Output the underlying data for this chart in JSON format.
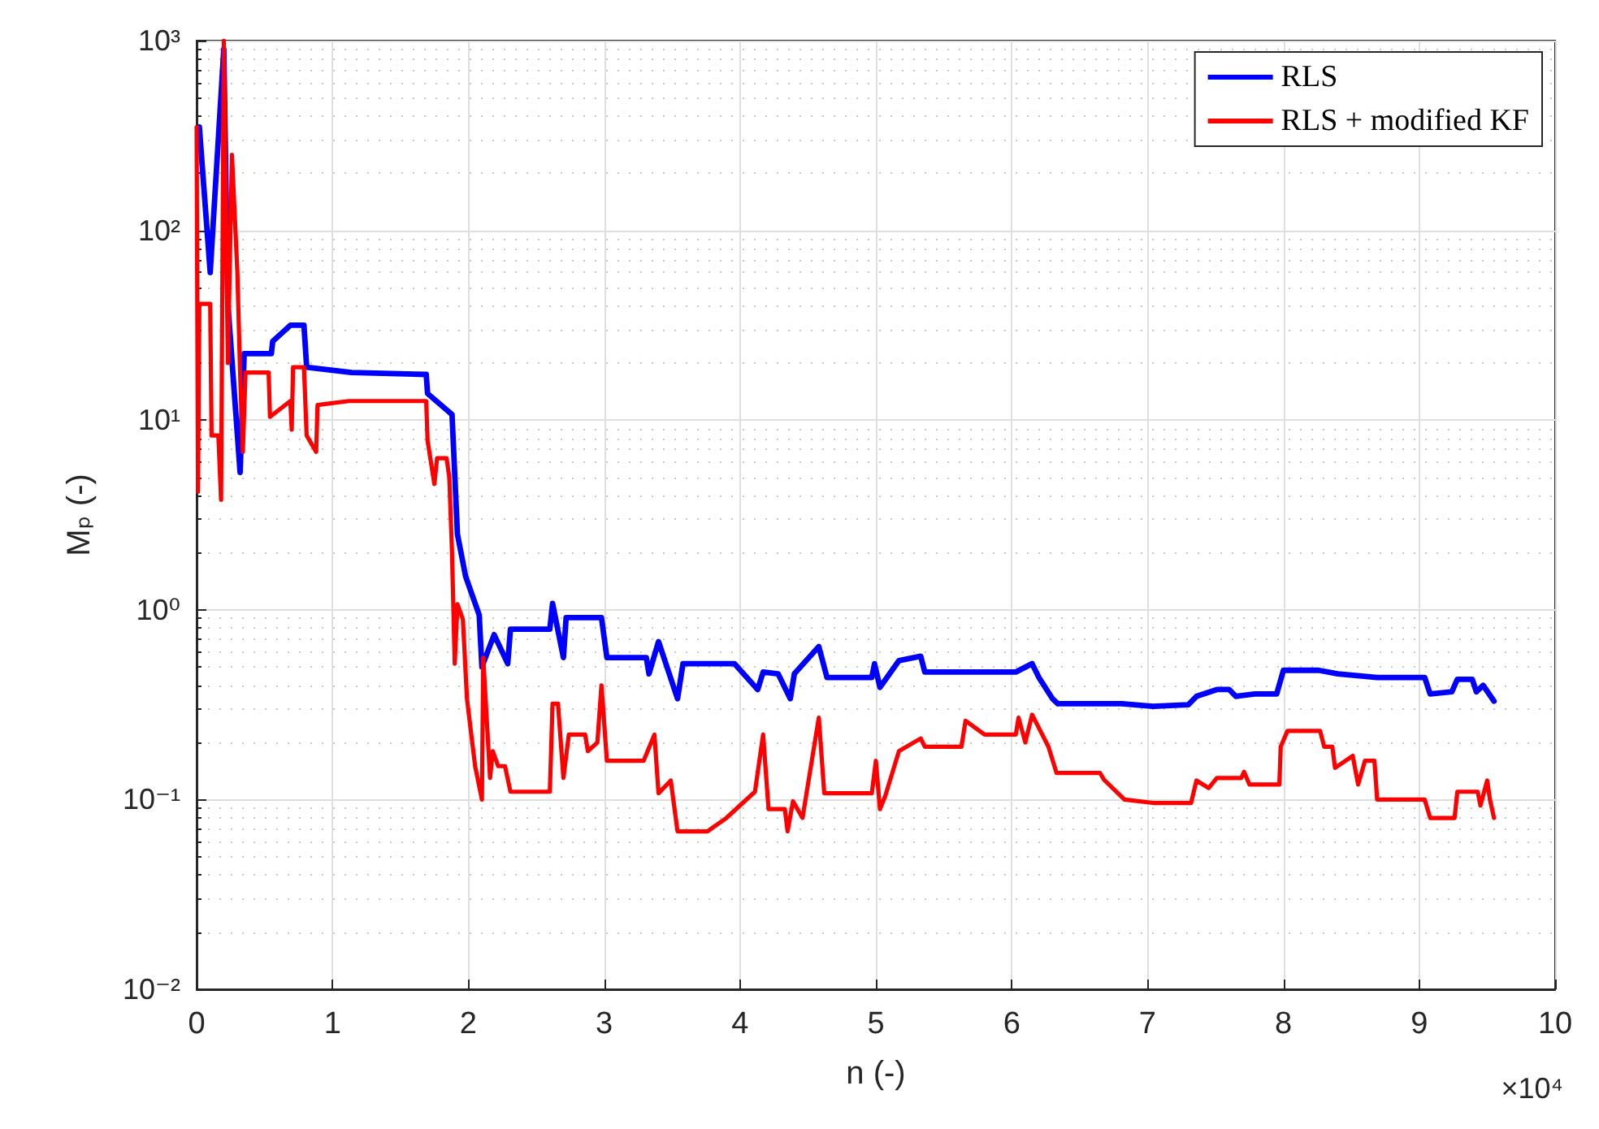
{
  "chart_data": {
    "type": "line",
    "xlabel": "n (-)",
    "ylabel": "Mₚ (-)",
    "annotations": [
      "×10⁴"
    ],
    "log": "y",
    "grid": true,
    "legend": "top right",
    "line_style": "solid",
    "marker": "none",
    "xlim": [
      0,
      10
    ],
    "xticks": [
      0,
      1,
      2,
      3,
      4,
      5,
      6,
      7,
      8,
      9,
      10
    ],
    "ylim": [
      0.01,
      1000
    ],
    "yticks": [
      {
        "value": 0.01,
        "label": "10⁻²"
      },
      {
        "value": 0.1,
        "label": "10⁻¹"
      },
      {
        "value": 1,
        "label": "10⁰"
      },
      {
        "value": 10,
        "label": "10¹"
      },
      {
        "value": 100,
        "label": "10²"
      },
      {
        "value": 1000,
        "label": "10³"
      }
    ],
    "series": [
      {
        "name": "RLS",
        "color": "#0000ff",
        "x": [
          0.02,
          0.1,
          0.2,
          0.23,
          0.32,
          0.35,
          0.55,
          0.56,
          0.69,
          0.79,
          0.81,
          1.14,
          1.69,
          1.7,
          1.88,
          1.92,
          1.98,
          2.08,
          2.1,
          2.19,
          2.29,
          2.31,
          2.6,
          2.62,
          2.7,
          2.72,
          2.98,
          3.02,
          3.31,
          3.33,
          3.4,
          3.54,
          3.58,
          3.96,
          4.13,
          4.17,
          4.28,
          4.37,
          4.4,
          4.58,
          4.64,
          4.97,
          4.99,
          5.03,
          5.17,
          5.33,
          5.36,
          6.03,
          6.15,
          6.2,
          6.3,
          6.34,
          6.81,
          7.04,
          7.3,
          7.36,
          7.51,
          7.6,
          7.65,
          7.79,
          7.95,
          8.0,
          8.26,
          8.4,
          8.69,
          9.04,
          9.08,
          9.24,
          9.28,
          9.39,
          9.42,
          9.47,
          9.55
        ],
        "values": [
          350,
          60,
          900,
          41,
          5.3,
          22.4,
          22.4,
          26,
          31.6,
          31.6,
          19,
          17.8,
          17.4,
          13.8,
          10.7,
          2.5,
          1.5,
          0.94,
          0.5,
          0.74,
          0.52,
          0.79,
          0.79,
          1.08,
          0.56,
          0.91,
          0.91,
          0.56,
          0.56,
          0.46,
          0.68,
          0.34,
          0.52,
          0.52,
          0.38,
          0.47,
          0.46,
          0.34,
          0.46,
          0.64,
          0.44,
          0.44,
          0.52,
          0.39,
          0.54,
          0.57,
          0.47,
          0.47,
          0.52,
          0.44,
          0.34,
          0.32,
          0.32,
          0.31,
          0.316,
          0.35,
          0.38,
          0.38,
          0.35,
          0.36,
          0.36,
          0.48,
          0.48,
          0.46,
          0.44,
          0.44,
          0.36,
          0.37,
          0.43,
          0.43,
          0.37,
          0.4,
          0.33
        ]
      },
      {
        "name": "RLS + modified KF",
        "color": "#ff0000",
        "x": [
          0.0,
          0.01,
          0.02,
          0.1,
          0.11,
          0.16,
          0.18,
          0.2,
          0.23,
          0.26,
          0.3,
          0.32,
          0.34,
          0.36,
          0.53,
          0.54,
          0.69,
          0.7,
          0.71,
          0.79,
          0.81,
          0.88,
          0.89,
          1.12,
          1.69,
          1.7,
          1.75,
          1.77,
          1.84,
          1.86,
          1.88,
          1.9,
          1.92,
          1.96,
          1.99,
          2.05,
          2.1,
          2.11,
          2.16,
          2.18,
          2.22,
          2.27,
          2.31,
          2.6,
          2.62,
          2.66,
          2.7,
          2.74,
          2.86,
          2.88,
          2.95,
          2.98,
          3.02,
          3.29,
          3.37,
          3.4,
          3.49,
          3.54,
          3.76,
          3.9,
          4.11,
          4.17,
          4.21,
          4.33,
          4.35,
          4.39,
          4.46,
          4.5,
          4.58,
          4.62,
          4.97,
          5.0,
          5.03,
          5.07,
          5.17,
          5.33,
          5.36,
          5.63,
          5.66,
          5.8,
          6.03,
          6.05,
          6.1,
          6.15,
          6.27,
          6.33,
          6.65,
          6.68,
          6.83,
          7.04,
          7.32,
          7.36,
          7.45,
          7.51,
          7.69,
          7.71,
          7.75,
          7.97,
          7.98,
          8.03,
          8.27,
          8.3,
          8.36,
          8.38,
          8.51,
          8.55,
          8.6,
          8.67,
          8.69,
          9.04,
          9.08,
          9.26,
          9.28,
          9.43,
          9.45,
          9.5,
          9.52,
          9.55
        ],
        "values": [
          350,
          4.2,
          41,
          41,
          8.3,
          8.3,
          3.8,
          1000,
          20,
          250,
          60,
          17.8,
          6.8,
          17.8,
          17.8,
          10.4,
          12.6,
          8.9,
          19,
          19,
          8.3,
          6.8,
          12,
          12.6,
          12.6,
          7.8,
          4.6,
          6.3,
          6.3,
          5.0,
          2.0,
          0.52,
          1.07,
          0.89,
          0.34,
          0.15,
          0.1,
          0.56,
          0.13,
          0.18,
          0.15,
          0.15,
          0.11,
          0.11,
          0.32,
          0.32,
          0.13,
          0.22,
          0.22,
          0.18,
          0.2,
          0.4,
          0.16,
          0.16,
          0.22,
          0.108,
          0.126,
          0.068,
          0.068,
          0.08,
          0.11,
          0.22,
          0.089,
          0.089,
          0.068,
          0.098,
          0.08,
          0.12,
          0.27,
          0.108,
          0.108,
          0.16,
          0.089,
          0.105,
          0.18,
          0.21,
          0.19,
          0.19,
          0.26,
          0.22,
          0.22,
          0.27,
          0.2,
          0.28,
          0.19,
          0.138,
          0.138,
          0.127,
          0.1,
          0.096,
          0.096,
          0.126,
          0.115,
          0.13,
          0.13,
          0.14,
          0.12,
          0.12,
          0.19,
          0.23,
          0.23,
          0.19,
          0.19,
          0.147,
          0.17,
          0.12,
          0.16,
          0.16,
          0.1,
          0.1,
          0.08,
          0.08,
          0.11,
          0.11,
          0.093,
          0.126,
          0.1,
          0.08
        ]
      }
    ]
  }
}
